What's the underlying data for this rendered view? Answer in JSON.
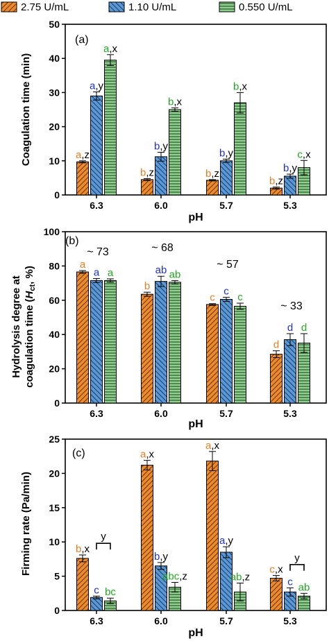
{
  "legend": {
    "placement": "top",
    "entries": [
      {
        "label": "2.75 U/mL",
        "color": "#ef8a2a",
        "pattern": "diagonal-hatch"
      },
      {
        "label": "1.10 U/mL",
        "color": "#5a97d6",
        "pattern": "diagonal-hatch-reverse"
      },
      {
        "label": "0.550 U/mL",
        "color": "#8fd08f",
        "pattern": "horizontal-lines"
      }
    ]
  },
  "letter_colors": [
    "#e67e22",
    "#1d2fd6",
    "#22a822"
  ],
  "chart_data": [
    {
      "type": "bar",
      "panel_label": "(a)",
      "xlabel": "pH",
      "ylabel": "Coagulation time (min)",
      "ylim": [
        0,
        50
      ],
      "yticks": [
        "0",
        "10",
        "20",
        "30",
        "40",
        "50"
      ],
      "categories": [
        "6.3",
        "6.0",
        "5.7",
        "5.3"
      ],
      "series": [
        {
          "name": "2.75 U/mL",
          "values": [
            9.7,
            4.5,
            4.3,
            2.0
          ],
          "errors": [
            0.3,
            0.3,
            0.2,
            0.3
          ]
        },
        {
          "name": "1.10 U/mL",
          "values": [
            29.0,
            11.2,
            10.0,
            5.5
          ],
          "errors": [
            1.2,
            1.3,
            0.5,
            0.6
          ]
        },
        {
          "name": "0.550 U/mL",
          "values": [
            39.5,
            25.0,
            27.0,
            8.0
          ],
          "errors": [
            1.6,
            0.5,
            3.0,
            2.1
          ]
        }
      ],
      "letters": [
        [
          "a,z",
          "a,y",
          "a,x"
        ],
        [
          "b,z",
          "b,y",
          "b,x"
        ],
        [
          "b,z",
          "b,y",
          "b,x"
        ],
        [
          "b,z",
          "b,y",
          "c,x"
        ]
      ]
    },
    {
      "type": "bar",
      "panel_label": "(b)",
      "xlabel": "pH",
      "ylabel_line1": "Hydrolysis degree at",
      "ylabel_line2_pre": "coagulation time (",
      "ylabel_line2_sym": "H",
      "ylabel_line2_sub": "ct",
      "ylabel_line2_post": ", %)",
      "ylim": [
        0,
        100
      ],
      "yticks": [
        "0",
        "20",
        "40",
        "60",
        "80",
        "100"
      ],
      "categories": [
        "6.3",
        "6.0",
        "5.7",
        "5.3"
      ],
      "series": [
        {
          "name": "2.75 U/mL",
          "values": [
            76.5,
            63.5,
            57.5,
            28.5
          ],
          "errors": [
            0.8,
            1.2,
            0.5,
            2.0
          ]
        },
        {
          "name": "1.10 U/mL",
          "values": [
            71.5,
            71.0,
            60.5,
            37.0
          ],
          "errors": [
            1.2,
            3.0,
            1.2,
            3.5
          ]
        },
        {
          "name": "0.550 U/mL",
          "values": [
            71.5,
            70.5,
            56.5,
            35.0
          ],
          "errors": [
            1.0,
            1.0,
            1.8,
            5.5
          ]
        }
      ],
      "letters": [
        [
          "a",
          "a",
          "a"
        ],
        [
          "b",
          "ab",
          "ab"
        ],
        [
          "c",
          "c",
          "c"
        ],
        [
          "d",
          "d",
          "d"
        ]
      ],
      "group_annotations": [
        "~ 73",
        "~ 68",
        "~ 57",
        "~ 33"
      ]
    },
    {
      "type": "bar",
      "panel_label": "(c)",
      "xlabel": "pH",
      "ylabel": "Firming rate (Pa/min)",
      "ylim": [
        0,
        25
      ],
      "yticks": [
        "0",
        "5",
        "10",
        "15",
        "20",
        "25"
      ],
      "categories": [
        "6.3",
        "6.0",
        "5.7",
        "5.3"
      ],
      "series": [
        {
          "name": "2.75 U/mL",
          "values": [
            7.6,
            21.2,
            21.8,
            4.7
          ],
          "errors": [
            0.5,
            0.7,
            1.4,
            0.4
          ]
        },
        {
          "name": "1.10 U/mL",
          "values": [
            1.9,
            6.5,
            8.5,
            2.7
          ],
          "errors": [
            0.2,
            0.5,
            0.8,
            0.6
          ]
        },
        {
          "name": "0.550 U/mL",
          "values": [
            1.4,
            3.4,
            2.7,
            2.1
          ],
          "errors": [
            0.4,
            0.7,
            1.3,
            0.4
          ]
        }
      ],
      "letters": [
        [
          "b,x",
          "c",
          "bc"
        ],
        [
          "a,x",
          "b,y",
          "abc,z"
        ],
        [
          "a,x",
          "a,y",
          "ab,z"
        ],
        [
          "c,x",
          "c",
          "ab"
        ]
      ],
      "brackets": [
        {
          "category": "6.3",
          "label": "y",
          "value": 9.8
        },
        {
          "category": "5.3",
          "label": "y",
          "value": 6.7
        }
      ]
    }
  ]
}
